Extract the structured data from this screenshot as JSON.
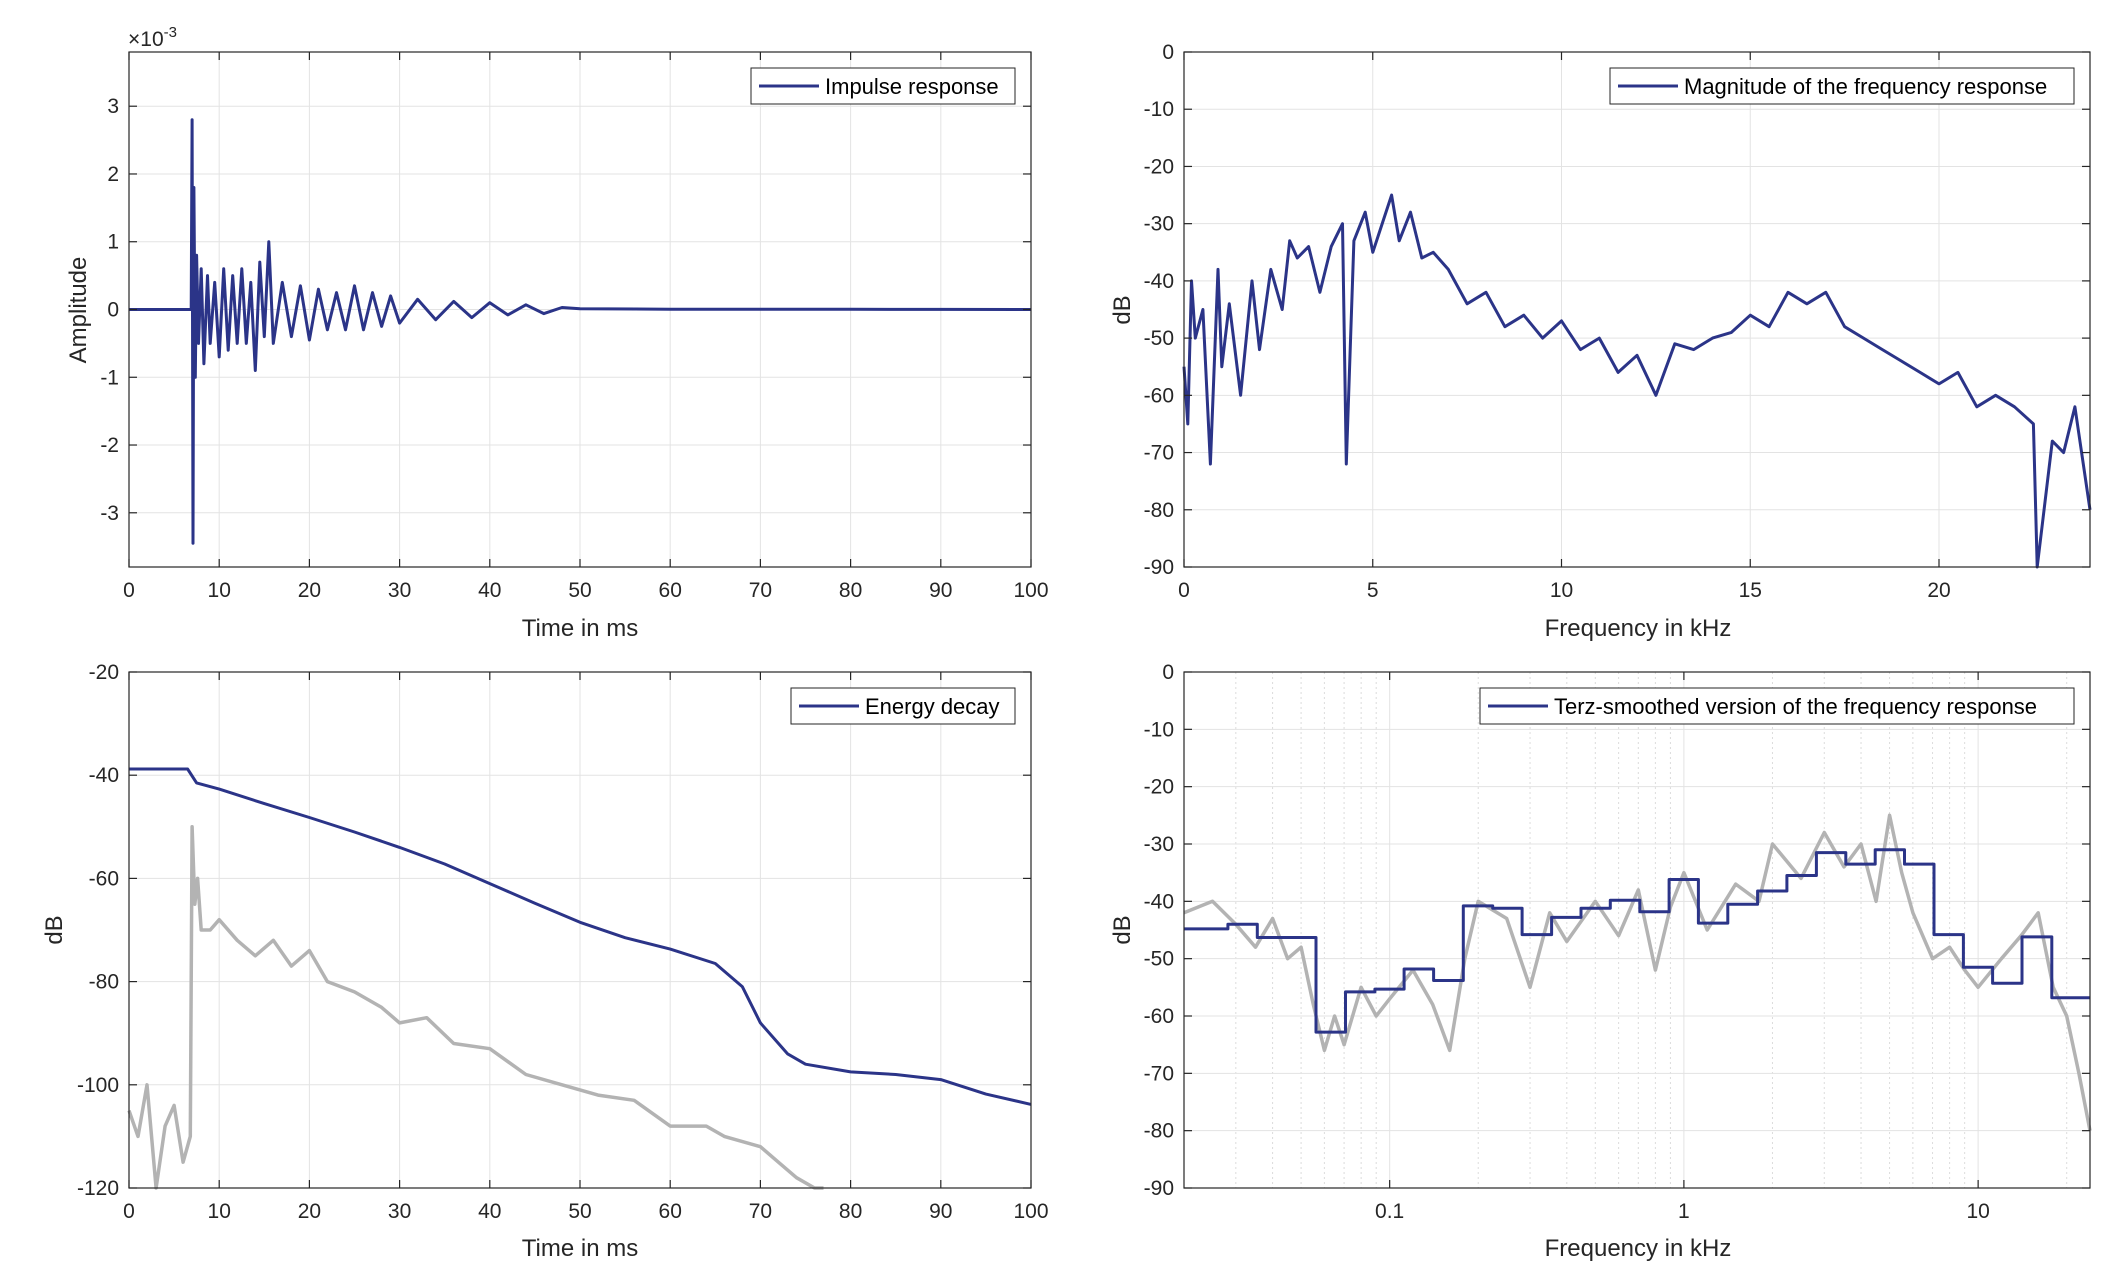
{
  "chart_data": [
    {
      "id": "impulse",
      "type": "line",
      "title": "",
      "xlabel": "Time in ms",
      "ylabel": "Amplitude",
      "exponent_label": "×10",
      "exponent_power": "-3",
      "xlim": [
        0,
        100
      ],
      "ylim": [
        -3.8,
        3.8
      ],
      "xticks": [
        0,
        10,
        20,
        30,
        40,
        50,
        60,
        70,
        80,
        90,
        100
      ],
      "yticks": [
        -3,
        -2,
        -1,
        0,
        1,
        2,
        3
      ],
      "grid": true,
      "legend_position": "top-right",
      "series": [
        {
          "name": "Impulse response",
          "color": "#2b3488",
          "x": [
            0,
            6.9,
            7.0,
            7.1,
            7.2,
            7.35,
            7.5,
            7.7,
            8.0,
            8.3,
            8.7,
            9.0,
            9.5,
            10,
            10.5,
            11,
            11.5,
            12,
            12.5,
            13,
            13.5,
            14,
            14.5,
            15,
            15.5,
            16,
            17,
            18,
            19,
            20,
            21,
            22,
            23,
            24,
            25,
            26,
            27,
            28,
            29,
            30,
            32,
            34,
            36,
            38,
            40,
            42,
            44,
            46,
            48,
            50,
            60,
            70,
            80,
            90,
            100
          ],
          "y": [
            0,
            0,
            2.8,
            -3.45,
            1.8,
            -1.0,
            0.8,
            -0.5,
            0.6,
            -0.8,
            0.5,
            -0.5,
            0.4,
            -0.7,
            0.6,
            -0.6,
            0.5,
            -0.5,
            0.6,
            -0.5,
            0.4,
            -0.9,
            0.7,
            -0.4,
            1.0,
            -0.5,
            0.4,
            -0.4,
            0.35,
            -0.45,
            0.3,
            -0.3,
            0.25,
            -0.3,
            0.35,
            -0.3,
            0.25,
            -0.25,
            0.2,
            -0.2,
            0.15,
            -0.15,
            0.12,
            -0.12,
            0.1,
            -0.08,
            0.07,
            -0.06,
            0.03,
            0.01,
            0.005,
            0.004,
            0.003,
            0.002,
            0.0
          ]
        }
      ]
    },
    {
      "id": "magnitude",
      "type": "line",
      "title": "",
      "xlabel": "Frequency in kHz",
      "ylabel": "dB",
      "xlim": [
        0,
        24
      ],
      "ylim": [
        -90,
        0
      ],
      "xticks": [
        0,
        5,
        10,
        15,
        20
      ],
      "yticks": [
        0,
        -10,
        -20,
        -30,
        -40,
        -50,
        -60,
        -70,
        -80,
        -90
      ],
      "grid": true,
      "legend_position": "top-right",
      "series": [
        {
          "name": "Magnitude of the frequency response",
          "color": "#2b3488",
          "x": [
            0,
            0.1,
            0.2,
            0.3,
            0.5,
            0.7,
            0.9,
            1.0,
            1.2,
            1.5,
            1.8,
            2.0,
            2.3,
            2.6,
            2.8,
            3.0,
            3.3,
            3.6,
            3.9,
            4.2,
            4.3,
            4.5,
            4.8,
            5.0,
            5.3,
            5.5,
            5.7,
            6.0,
            6.3,
            6.6,
            7.0,
            7.5,
            8.0,
            8.5,
            9.0,
            9.5,
            10.0,
            10.5,
            11.0,
            11.5,
            12.0,
            12.5,
            13.0,
            13.5,
            14.0,
            14.5,
            15.0,
            15.5,
            16.0,
            16.5,
            17.0,
            17.5,
            18.0,
            18.5,
            19.0,
            19.5,
            20.0,
            20.5,
            21.0,
            21.5,
            22.0,
            22.5,
            22.6,
            23.0,
            23.3,
            23.6,
            24.0
          ],
          "y": [
            -55,
            -65,
            -40,
            -50,
            -45,
            -72,
            -38,
            -55,
            -44,
            -60,
            -40,
            -52,
            -38,
            -45,
            -33,
            -36,
            -34,
            -42,
            -34,
            -30,
            -72,
            -33,
            -28,
            -35,
            -29,
            -25,
            -33,
            -28,
            -36,
            -35,
            -38,
            -44,
            -42,
            -48,
            -46,
            -50,
            -47,
            -52,
            -50,
            -56,
            -53,
            -60,
            -51,
            -52,
            -50,
            -49,
            -46,
            -48,
            -42,
            -44,
            -42,
            -48,
            -50,
            -52,
            -54,
            -56,
            -58,
            -56,
            -62,
            -60,
            -62,
            -65,
            -90,
            -68,
            -70,
            -62,
            -80
          ]
        }
      ]
    },
    {
      "id": "energy",
      "type": "line",
      "title": "",
      "xlabel": "Time in ms",
      "ylabel": "dB",
      "xlim": [
        0,
        100
      ],
      "ylim": [
        -120,
        -20
      ],
      "xticks": [
        0,
        10,
        20,
        30,
        40,
        50,
        60,
        70,
        80,
        90,
        100
      ],
      "yticks": [
        -20,
        -40,
        -60,
        -80,
        -100,
        -120
      ],
      "grid": true,
      "legend_position": "top-right",
      "series": [
        {
          "name": "Energy decay",
          "color": "#2b3488",
          "x": [
            0,
            6.5,
            7.5,
            10,
            15,
            20,
            25,
            30,
            35,
            40,
            45,
            50,
            55,
            60,
            65,
            68,
            70,
            73,
            75,
            80,
            85,
            90,
            95,
            100
          ],
          "y": [
            -38.8,
            -38.8,
            -41.5,
            -42.7,
            -45.5,
            -48.2,
            -51,
            -54,
            -57.2,
            -61,
            -64.8,
            -68.5,
            -71.5,
            -73.7,
            -76.5,
            -81,
            -88,
            -94,
            -96,
            -97.5,
            -98,
            -99,
            -101.8,
            -103.8
          ]
        },
        {
          "name": "",
          "color": "#b3b3b3",
          "x": [
            0,
            1,
            2,
            3,
            4,
            5,
            6,
            6.8,
            7.0,
            7.3,
            7.6,
            8,
            9,
            10,
            12,
            14,
            16,
            18,
            20,
            22,
            25,
            28,
            30,
            33,
            36,
            40,
            44,
            48,
            52,
            56,
            60,
            64,
            66,
            70,
            72,
            74,
            76,
            77
          ],
          "y": [
            -105,
            -110,
            -100,
            -120,
            -108,
            -104,
            -115,
            -110,
            -50,
            -65,
            -60,
            -70,
            -70,
            -68,
            -72,
            -75,
            -72,
            -77,
            -74,
            -80,
            -82,
            -85,
            -88,
            -87,
            -92,
            -93,
            -98,
            -100,
            -102,
            -103,
            -108,
            -108,
            -110,
            -112,
            -115,
            -118,
            -120,
            -120
          ]
        }
      ]
    },
    {
      "id": "terz",
      "type": "line",
      "title": "",
      "xlabel": "Frequency in kHz",
      "ylabel": "dB",
      "xscale": "log",
      "xlim": [
        0.02,
        24
      ],
      "ylim": [
        -90,
        0
      ],
      "xticks": [
        0.1,
        1,
        10
      ],
      "xticklabels": [
        "0.1",
        "1",
        "10"
      ],
      "yticks": [
        0,
        -10,
        -20,
        -30,
        -40,
        -50,
        -60,
        -70,
        -80,
        -90
      ],
      "grid": true,
      "legend_position": "top-right",
      "series": [
        {
          "name": "Terz-smoothed version of the frequency response",
          "color": "#2b3488",
          "step": true,
          "x": [
            0.02,
            0.0282,
            0.0355,
            0.0447,
            0.0562,
            0.0708,
            0.0891,
            0.112,
            0.141,
            0.178,
            0.224,
            0.282,
            0.355,
            0.447,
            0.562,
            0.708,
            0.891,
            1.12,
            1.41,
            1.78,
            2.24,
            2.82,
            3.55,
            4.47,
            5.62,
            7.08,
            8.91,
            11.2,
            14.1,
            17.8,
            22.4,
            24
          ],
          "y": [
            -44.8,
            -44.0,
            -46.3,
            -46.3,
            -62.8,
            -55.8,
            -55.3,
            -51.8,
            -53.8,
            -40.8,
            -41.2,
            -45.8,
            -42.8,
            -41.2,
            -39.8,
            -41.8,
            -36.2,
            -43.8,
            -40.5,
            -38.2,
            -35.5,
            -31.5,
            -33.5,
            -31.0,
            -33.5,
            -45.8,
            -51.5,
            -54.3,
            -46.2,
            -56.8,
            -56.8,
            -56.8
          ]
        },
        {
          "name": "",
          "color": "#b3b3b3",
          "x": [
            0.02,
            0.025,
            0.03,
            0.035,
            0.04,
            0.045,
            0.05,
            0.055,
            0.06,
            0.065,
            0.07,
            0.08,
            0.09,
            0.1,
            0.12,
            0.14,
            0.16,
            0.18,
            0.2,
            0.25,
            0.3,
            0.35,
            0.4,
            0.5,
            0.6,
            0.7,
            0.8,
            0.9,
            1.0,
            1.2,
            1.5,
            1.8,
            2.0,
            2.5,
            3.0,
            3.5,
            4.0,
            4.5,
            5.0,
            5.5,
            6.0,
            7.0,
            8.0,
            9.0,
            10,
            12,
            14,
            16,
            18,
            20,
            22,
            24
          ],
          "y": [
            -42,
            -40,
            -44,
            -48,
            -43,
            -50,
            -48,
            -58,
            -66,
            -60,
            -65,
            -55,
            -60,
            -57,
            -52,
            -58,
            -66,
            -50,
            -40,
            -43,
            -55,
            -42,
            -47,
            -40,
            -46,
            -38,
            -52,
            -41,
            -35,
            -45,
            -37,
            -40,
            -30,
            -36,
            -28,
            -34,
            -30,
            -40,
            -25,
            -35,
            -42,
            -50,
            -48,
            -52,
            -55,
            -50,
            -46,
            -42,
            -55,
            -60,
            -70,
            -80
          ]
        }
      ]
    }
  ]
}
